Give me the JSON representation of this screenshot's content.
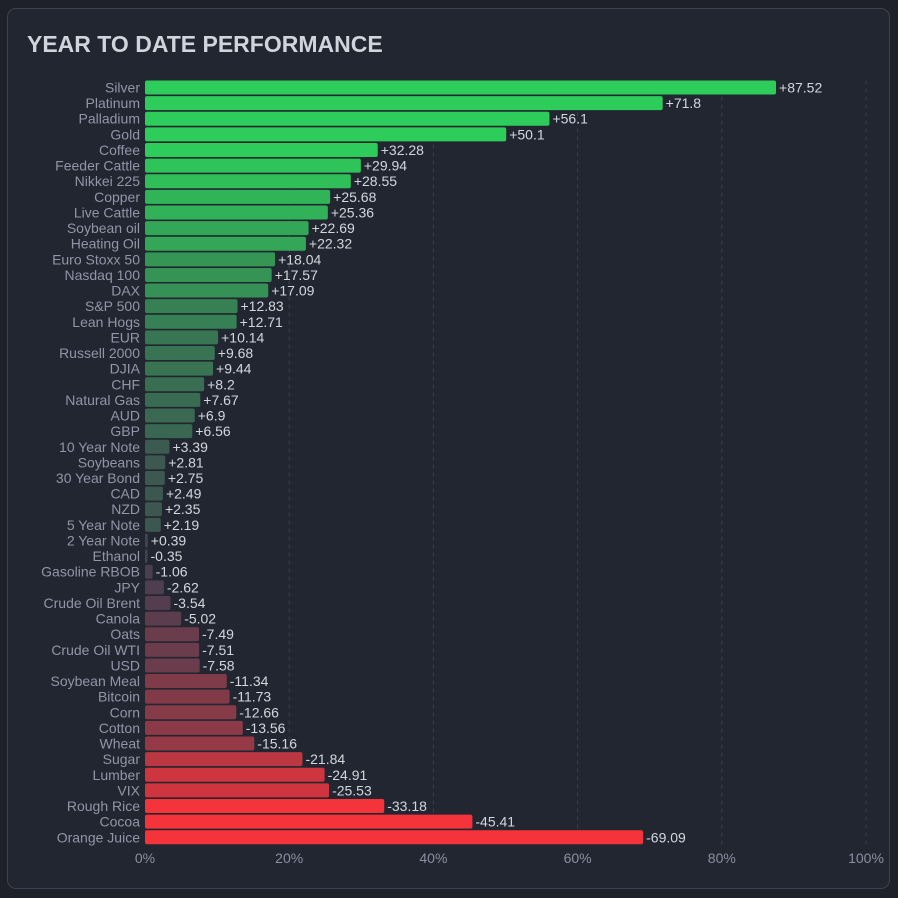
{
  "title": "YEAR TO DATE PERFORMANCE",
  "chart_data": {
    "type": "bar",
    "orientation": "horizontal",
    "title": "YEAR TO DATE PERFORMANCE",
    "xlabel": "",
    "ylabel": "",
    "xlim": [
      0,
      100
    ],
    "x_tick_labels": [
      "0%",
      "20%",
      "40%",
      "60%",
      "80%",
      "100%"
    ],
    "x_ticks": [
      0,
      20,
      40,
      60,
      80,
      100
    ],
    "grid": "vertical dashed",
    "bar_length": "absolute value",
    "colors": {
      "positive_strong": "#2ecc5a",
      "positive_weak": "#3c5550",
      "neutral": "#3e4450",
      "negative_weak": "#4b3e50",
      "negative_strong": "#f5333a"
    },
    "categories": [
      "Silver",
      "Platinum",
      "Palladium",
      "Gold",
      "Coffee",
      "Feeder Cattle",
      "Nikkei 225",
      "Copper",
      "Live Cattle",
      "Soybean oil",
      "Heating Oil",
      "Euro Stoxx 50",
      "Nasdaq 100",
      "DAX",
      "S&P 500",
      "Lean Hogs",
      "EUR",
      "Russell 2000",
      "DJIA",
      "CHF",
      "Natural Gas",
      "AUD",
      "GBP",
      "10 Year Note",
      "Soybeans",
      "30 Year Bond",
      "CAD",
      "NZD",
      "5 Year Note",
      "2 Year Note",
      "Ethanol",
      "Gasoline RBOB",
      "JPY",
      "Crude Oil Brent",
      "Canola",
      "Oats",
      "Crude Oil WTI",
      "USD",
      "Soybean Meal",
      "Bitcoin",
      "Corn",
      "Cotton",
      "Wheat",
      "Sugar",
      "Lumber",
      "VIX",
      "Rough Rice",
      "Cocoa",
      "Orange Juice"
    ],
    "values": [
      87.52,
      71.8,
      56.1,
      50.1,
      32.28,
      29.94,
      28.55,
      25.68,
      25.36,
      22.69,
      22.32,
      18.04,
      17.57,
      17.09,
      12.83,
      12.71,
      10.14,
      9.68,
      9.44,
      8.2,
      7.67,
      6.9,
      6.56,
      3.39,
      2.81,
      2.75,
      2.49,
      2.35,
      2.19,
      0.39,
      -0.35,
      -1.06,
      -2.62,
      -3.54,
      -5.02,
      -7.49,
      -7.51,
      -7.58,
      -11.34,
      -11.73,
      -12.66,
      -13.56,
      -15.16,
      -21.84,
      -24.91,
      -25.53,
      -33.18,
      -45.41,
      -69.09
    ],
    "data_labels": [
      "+87.52",
      "+71.8",
      "+56.1",
      "+50.1",
      "+32.28",
      "+29.94",
      "+28.55",
      "+25.68",
      "+25.36",
      "+22.69",
      "+22.32",
      "+18.04",
      "+17.57",
      "+17.09",
      "+12.83",
      "+12.71",
      "+10.14",
      "+9.68",
      "+9.44",
      "+8.2",
      "+7.67",
      "+6.9",
      "+6.56",
      "+3.39",
      "+2.81",
      "+2.75",
      "+2.49",
      "+2.35",
      "+2.19",
      "+0.39",
      "-0.35",
      "-1.06",
      "-2.62",
      "-3.54",
      "-5.02",
      "-7.49",
      "-7.51",
      "-7.58",
      "-11.34",
      "-11.73",
      "-12.66",
      "-13.56",
      "-15.16",
      "-21.84",
      "-24.91",
      "-25.53",
      "-33.18",
      "-45.41",
      "-69.09"
    ]
  }
}
